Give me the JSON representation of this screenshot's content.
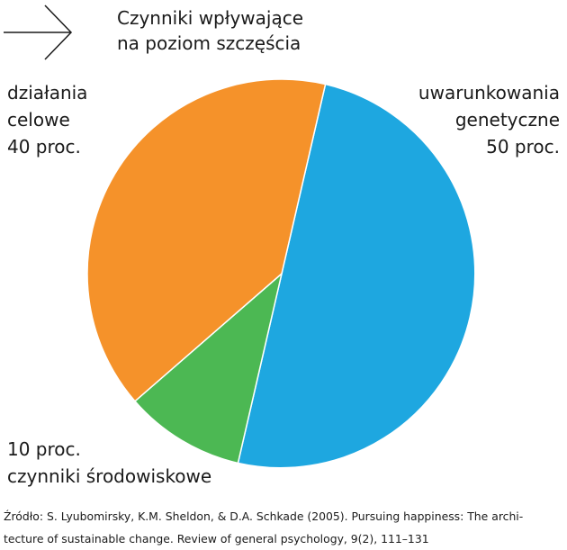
{
  "chart_data": {
    "type": "pie",
    "title": [
      "Czynniki wpływające",
      "na poziom szczęścia"
    ],
    "slices": [
      {
        "label": [
          "uwarunkowania",
          "genetyczne",
          "50 proc."
        ],
        "value": 50,
        "color": "#1ea7e0"
      },
      {
        "label": [
          "10 proc.",
          "czynniki środowiskowe"
        ],
        "value": 10,
        "color": "#4cb853"
      },
      {
        "label": [
          "działania",
          "celowe",
          "40 proc."
        ],
        "value": 40,
        "color": "#f5922a"
      }
    ]
  },
  "source": [
    "Źródło: S. Lyubomirsky, K.M.  Sheldon, & D.A. Schkade (2005). Pursuing happiness: The archi-",
    "tecture of sustainable change. Review of general psychology, 9(2), 111–131"
  ]
}
